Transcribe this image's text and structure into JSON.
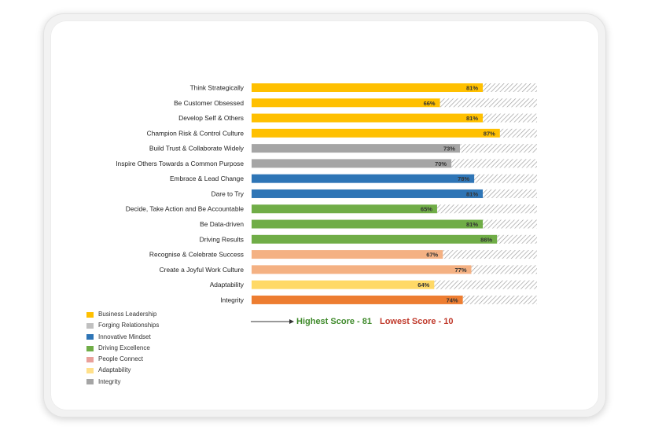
{
  "chart_data": {
    "type": "bar",
    "orientation": "horizontal",
    "stacked_background": "hatched-to-100",
    "categories": [
      "Think Strategically",
      "Be Customer Obsessed",
      "Develop Self & Others",
      "Champion Risk & Control Culture",
      "Build Trust & Collaborate Widely",
      "Inspire Others Towards a Common Purpose",
      "Embrace & Lead Change",
      "Dare to Try",
      "Decide, Take Action and Be Accountable",
      "Be Data-driven",
      "Driving Results",
      "Recognise & Celebrate Success",
      "Create a Joyful Work Culture",
      "Adaptability",
      "Integrity"
    ],
    "values": [
      81,
      66,
      81,
      87,
      73,
      70,
      78,
      81,
      65,
      81,
      86,
      67,
      77,
      64,
      74
    ],
    "value_labels": [
      "81%",
      "66%",
      "81%",
      "87%",
      "73%",
      "70%",
      "78%",
      "81%",
      "65%",
      "81%",
      "86%",
      "67%",
      "77%",
      "64%",
      "74%"
    ],
    "groups": [
      "Business Leadership",
      "Business Leadership",
      "Business Leadership",
      "Business Leadership",
      "Forging Relationships",
      "Forging Relationships",
      "Innovative Mindset",
      "Innovative Mindset",
      "Driving Excellence",
      "Driving Excellence",
      "Driving Excellence",
      "People Connect",
      "People Connect",
      "Adaptability",
      "Integrity"
    ],
    "xlim": [
      0,
      100
    ],
    "title": "",
    "xlabel": "",
    "ylabel": "",
    "legend_position": "bottom-left",
    "legend": [
      {
        "name": "Business Leadership",
        "color": "#ffc000"
      },
      {
        "name": "Forging Relationships",
        "color": "#a5a5a5"
      },
      {
        "name": "Innovative Mindset",
        "color": "#2e75b6"
      },
      {
        "name": "Driving Excellence",
        "color": "#70ad47"
      },
      {
        "name": "People Connect",
        "color": "#f4b183"
      },
      {
        "name": "Adaptability",
        "color": "#ffd966"
      },
      {
        "name": "Integrity",
        "color": "#ed7d31"
      }
    ],
    "legend_swatch_colors": [
      "#ffc000",
      "#c0c0c0",
      "#2e75b6",
      "#70ad47",
      "#e9a09a",
      "#ffe08a",
      "#a5a5a5"
    ]
  },
  "summary": {
    "highest": "Highest Score - 81",
    "lowest": "Lowest Score - 10"
  }
}
